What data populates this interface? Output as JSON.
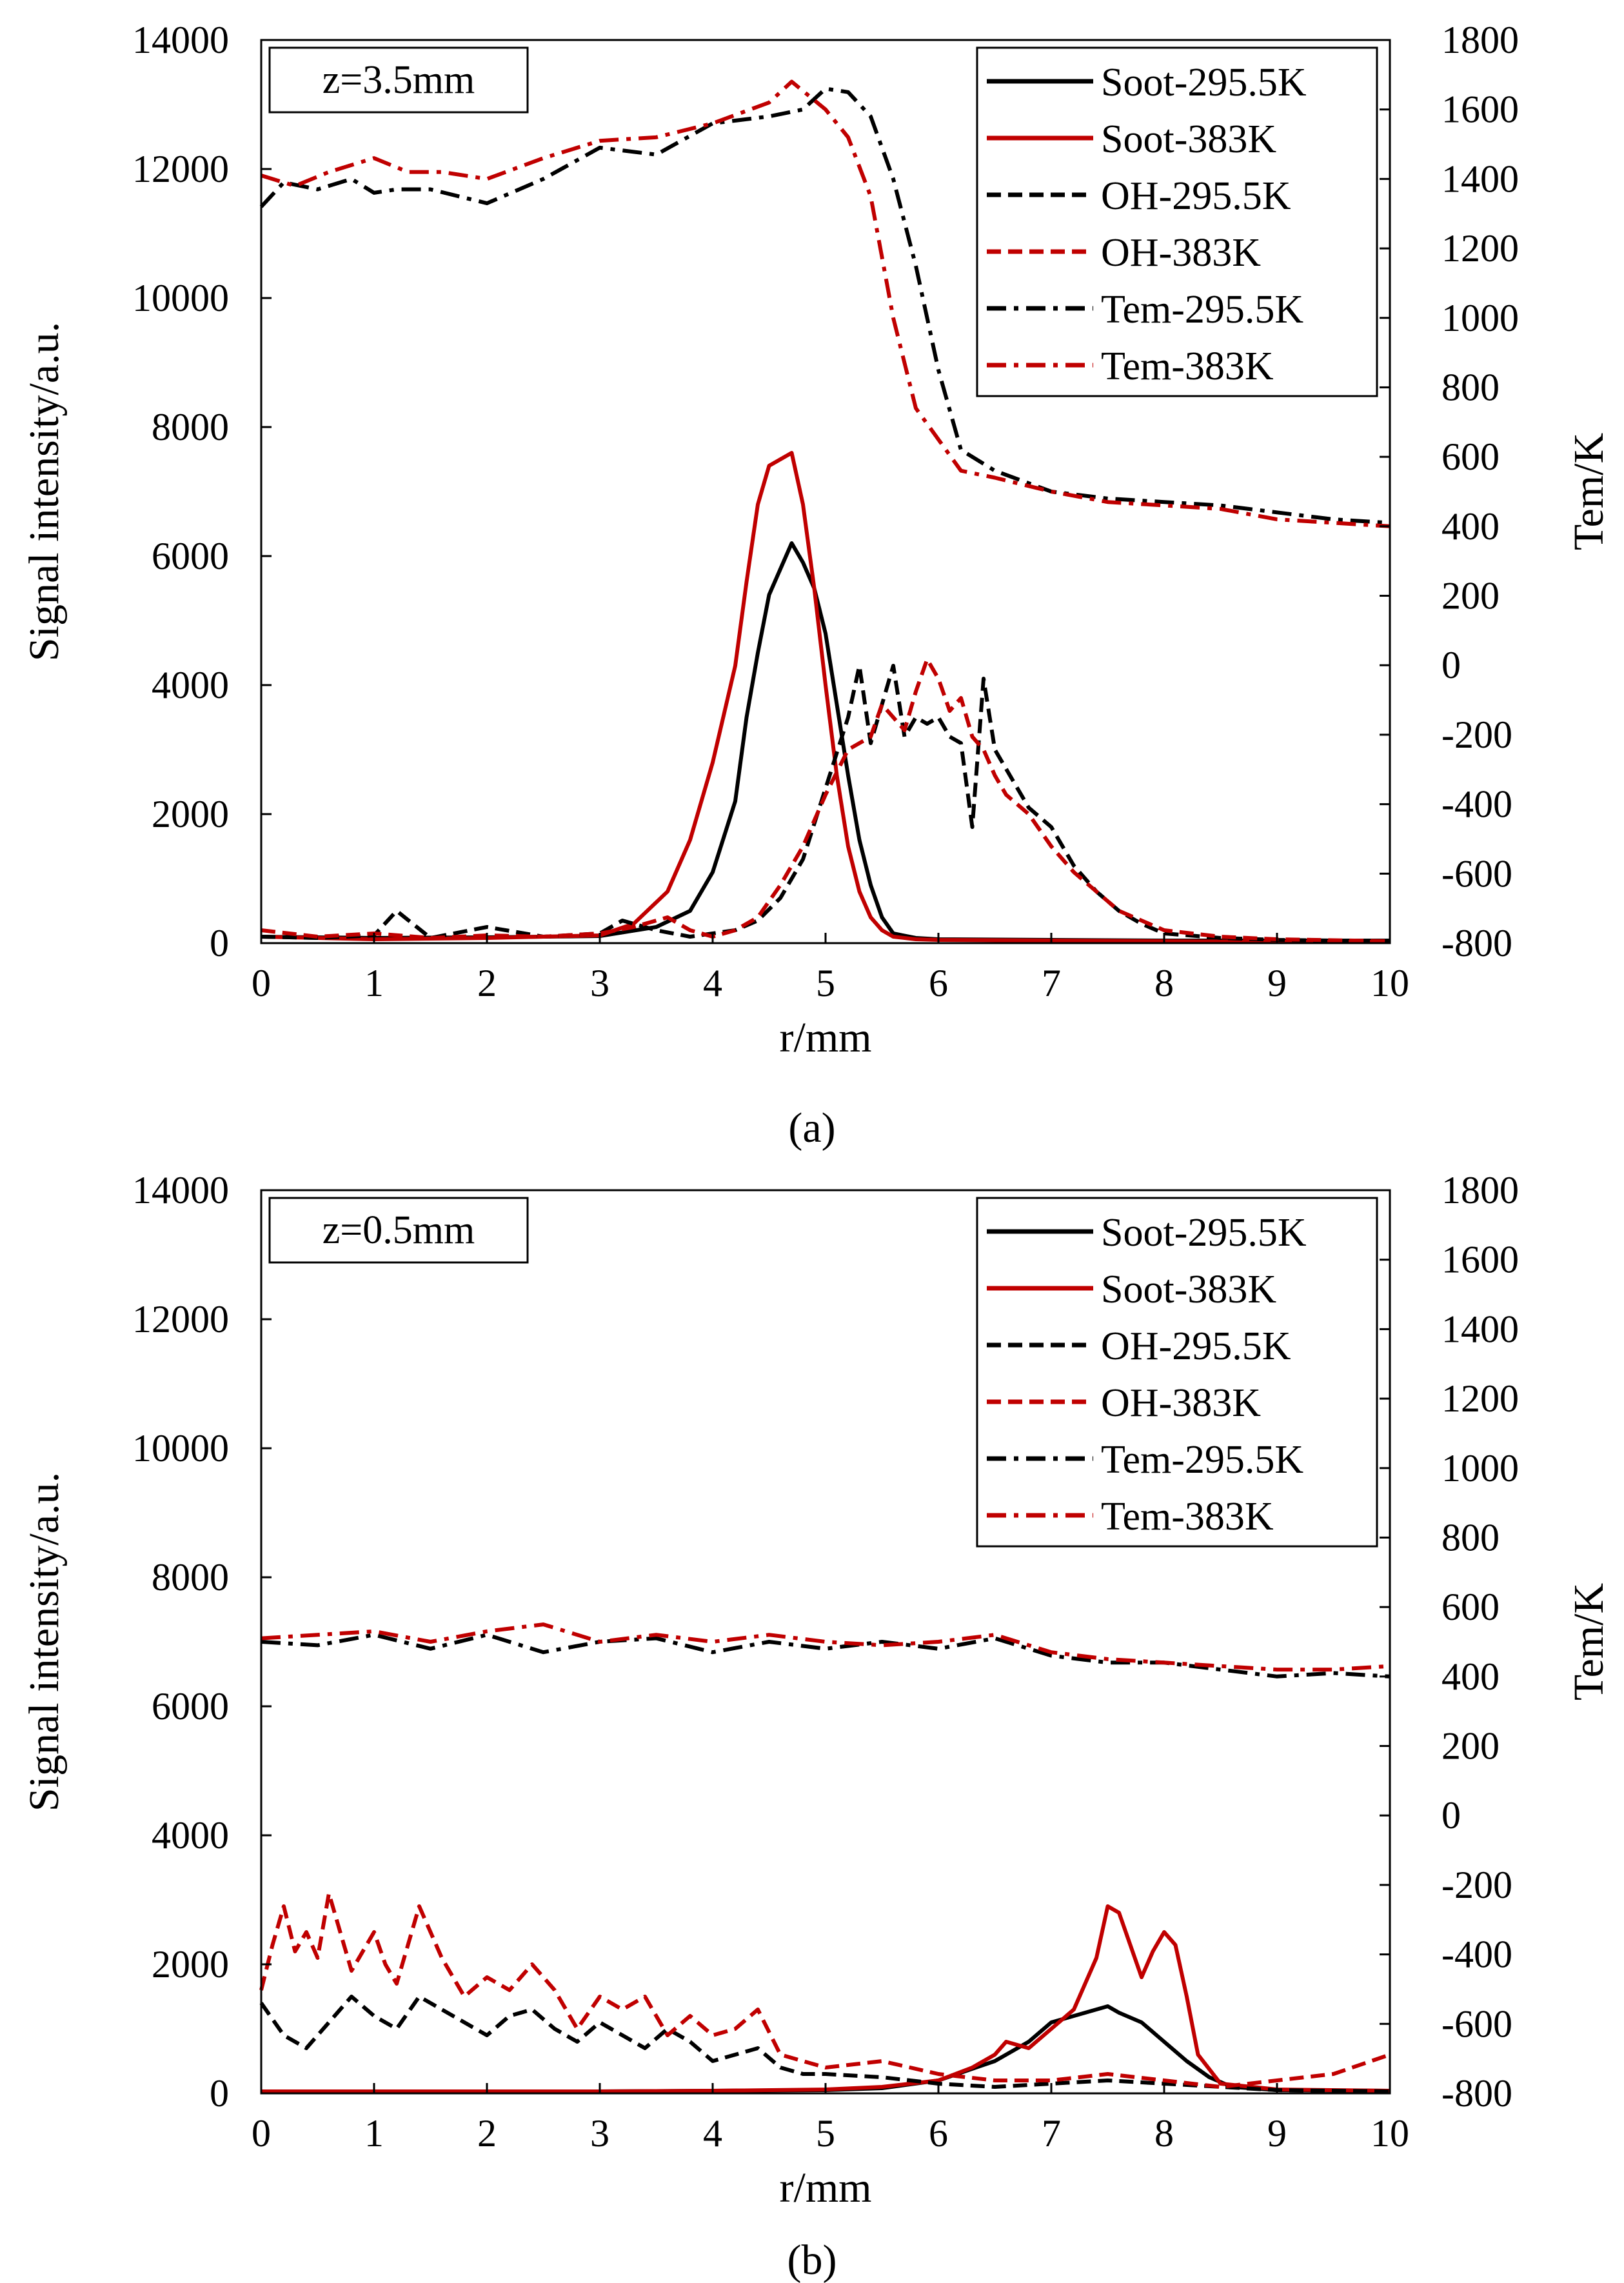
{
  "colors": {
    "black": "#000000",
    "red": "#c00000"
  },
  "chart_data": [
    {
      "type": "line",
      "panel_caption": "(a)",
      "annotation": "z=3.5mm",
      "xlabel": "r/mm",
      "ylabel": "Signal intensity/a.u.",
      "y2label": "Tem/K",
      "xlim": [
        0,
        10
      ],
      "ylim": [
        0,
        14000
      ],
      "y2lim": [
        -800,
        1800
      ],
      "xticks": [
        "0",
        "1",
        "2",
        "3",
        "4",
        "5",
        "6",
        "7",
        "8",
        "9",
        "10"
      ],
      "yticks": [
        "0",
        "2000",
        "4000",
        "6000",
        "8000",
        "10000",
        "12000",
        "14000"
      ],
      "y2ticks": [
        "-800",
        "-600",
        "-400",
        "-200",
        "0",
        "200",
        "400",
        "600",
        "800",
        "1000",
        "1200",
        "1400",
        "1600",
        "1800"
      ],
      "legend": [
        "Soot-295.5K",
        "Soot-383K",
        "OH-295.5K",
        "OH-383K",
        "Tem-295.5K",
        "Tem-383K"
      ],
      "series": [
        {
          "name": "Soot-295.5K",
          "axis": "left",
          "style": "solid",
          "color": "#000000",
          "x": [
            0,
            1,
            2,
            3,
            3.5,
            3.8,
            4.0,
            4.2,
            4.3,
            4.4,
            4.5,
            4.6,
            4.7,
            4.8,
            4.9,
            5.0,
            5.1,
            5.2,
            5.3,
            5.4,
            5.5,
            5.6,
            5.8,
            6,
            7,
            8,
            9,
            10
          ],
          "y": [
            100,
            80,
            90,
            110,
            250,
            500,
            1100,
            2200,
            3500,
            4500,
            5400,
            5800,
            6200,
            5900,
            5500,
            4800,
            3700,
            2600,
            1600,
            900,
            400,
            150,
            80,
            60,
            50,
            40,
            40,
            40
          ]
        },
        {
          "name": "Soot-383K",
          "axis": "left",
          "style": "solid",
          "color": "#c00000",
          "x": [
            0,
            1,
            2,
            3,
            3.3,
            3.6,
            3.8,
            4.0,
            4.2,
            4.3,
            4.4,
            4.5,
            4.6,
            4.7,
            4.8,
            4.9,
            5.0,
            5.1,
            5.2,
            5.3,
            5.4,
            5.5,
            5.6,
            5.8,
            6,
            7,
            8,
            9,
            10
          ],
          "y": [
            100,
            60,
            80,
            120,
            300,
            800,
            1600,
            2800,
            4300,
            5600,
            6800,
            7400,
            7500,
            7600,
            6800,
            5500,
            4000,
            2600,
            1500,
            800,
            400,
            200,
            100,
            60,
            50,
            40,
            30,
            20,
            20
          ]
        },
        {
          "name": "OH-295.5K",
          "axis": "left",
          "style": "dash",
          "color": "#000000",
          "x": [
            0,
            0.5,
            1,
            1.2,
            1.5,
            2,
            2.5,
            3,
            3.2,
            3.5,
            3.8,
            4.0,
            4.2,
            4.4,
            4.6,
            4.8,
            5.0,
            5.2,
            5.3,
            5.4,
            5.5,
            5.6,
            5.7,
            5.8,
            5.9,
            6.0,
            6.1,
            6.2,
            6.3,
            6.4,
            6.5,
            6.6,
            6.8,
            7.0,
            7.2,
            7.4,
            7.6,
            7.8,
            8.0,
            8.5,
            9,
            10
          ],
          "y": [
            100,
            80,
            120,
            500,
            80,
            250,
            100,
            150,
            350,
            200,
            100,
            150,
            200,
            350,
            700,
            1300,
            2400,
            3500,
            4300,
            3100,
            3700,
            4300,
            3200,
            3500,
            3400,
            3500,
            3200,
            3100,
            1800,
            4100,
            3000,
            2700,
            2100,
            1800,
            1200,
            800,
            500,
            300,
            150,
            80,
            50,
            30
          ]
        },
        {
          "name": "OH-383K",
          "axis": "left",
          "style": "dash",
          "color": "#c00000",
          "x": [
            0,
            0.5,
            1,
            1.5,
            2,
            2.5,
            3,
            3.3,
            3.6,
            3.8,
            4.0,
            4.2,
            4.4,
            4.6,
            4.8,
            5.0,
            5.2,
            5.4,
            5.5,
            5.6,
            5.7,
            5.8,
            5.9,
            6.0,
            6.1,
            6.2,
            6.3,
            6.4,
            6.5,
            6.6,
            6.8,
            7.0,
            7.2,
            7.4,
            7.6,
            7.8,
            8.0,
            8.5,
            9,
            10
          ],
          "y": [
            200,
            100,
            150,
            80,
            120,
            100,
            150,
            250,
            400,
            200,
            100,
            200,
            400,
            900,
            1500,
            2300,
            3000,
            3200,
            3700,
            3500,
            3300,
            3900,
            4400,
            4100,
            3600,
            3800,
            3200,
            3000,
            2600,
            2300,
            2000,
            1500,
            1100,
            800,
            500,
            350,
            200,
            100,
            60,
            30
          ]
        },
        {
          "name": "Tem-295.5K",
          "axis": "right",
          "style": "dashdot",
          "color": "#000000",
          "x": [
            0,
            0.2,
            0.5,
            0.8,
            1.0,
            1.2,
            1.5,
            2.0,
            2.5,
            3.0,
            3.5,
            4.0,
            4.5,
            4.8,
            5.0,
            5.2,
            5.4,
            5.6,
            5.8,
            6.0,
            6.2,
            6.5,
            7.0,
            7.5,
            8.0,
            8.5,
            9.0,
            9.5,
            10
          ],
          "y": [
            1320,
            1390,
            1370,
            1400,
            1360,
            1370,
            1370,
            1330,
            1400,
            1490,
            1470,
            1560,
            1580,
            1600,
            1660,
            1650,
            1580,
            1400,
            1150,
            850,
            620,
            560,
            500,
            480,
            470,
            460,
            440,
            420,
            410
          ]
        },
        {
          "name": "Tem-383K",
          "axis": "right",
          "style": "dashdot",
          "color": "#c00000",
          "x": [
            0,
            0.3,
            0.6,
            1.0,
            1.3,
            1.6,
            2.0,
            2.5,
            3.0,
            3.5,
            4.0,
            4.5,
            4.7,
            5.0,
            5.2,
            5.4,
            5.6,
            5.8,
            6.0,
            6.2,
            6.5,
            7.0,
            7.5,
            8.0,
            8.5,
            9.0,
            9.5,
            10
          ],
          "y": [
            1410,
            1380,
            1420,
            1460,
            1420,
            1420,
            1400,
            1460,
            1510,
            1520,
            1560,
            1620,
            1680,
            1600,
            1520,
            1350,
            1000,
            740,
            650,
            560,
            540,
            500,
            470,
            460,
            450,
            420,
            410,
            400
          ]
        }
      ]
    },
    {
      "type": "line",
      "panel_caption": "(b)",
      "annotation": "z=0.5mm",
      "xlabel": "r/mm",
      "ylabel": "Signal intensity/a.u.",
      "y2label": "Tem/K",
      "xlim": [
        0,
        10
      ],
      "ylim": [
        0,
        14000
      ],
      "y2lim": [
        -800,
        1800
      ],
      "xticks": [
        "0",
        "1",
        "2",
        "3",
        "4",
        "5",
        "6",
        "7",
        "8",
        "9",
        "10"
      ],
      "yticks": [
        "0",
        "2000",
        "4000",
        "6000",
        "8000",
        "10000",
        "12000",
        "14000"
      ],
      "y2ticks": [
        "-800",
        "-600",
        "-400",
        "-200",
        "0",
        "200",
        "400",
        "600",
        "800",
        "1000",
        "1200",
        "1400",
        "1600",
        "1800"
      ],
      "legend": [
        "Soot-295.5K",
        "Soot-383K",
        "OH-295.5K",
        "OH-383K",
        "Tem-295.5K",
        "Tem-383K"
      ],
      "series": [
        {
          "name": "Soot-295.5K",
          "axis": "left",
          "style": "solid",
          "color": "#000000",
          "x": [
            0,
            1,
            2,
            3,
            4,
            5,
            5.5,
            6.0,
            6.5,
            6.8,
            7.0,
            7.2,
            7.4,
            7.5,
            7.6,
            7.8,
            8.0,
            8.2,
            8.4,
            8.6,
            9,
            10
          ],
          "y": [
            30,
            30,
            30,
            30,
            40,
            50,
            80,
            200,
            500,
            800,
            1100,
            1200,
            1300,
            1350,
            1250,
            1100,
            800,
            500,
            250,
            100,
            50,
            40
          ]
        },
        {
          "name": "Soot-383K",
          "axis": "left",
          "style": "solid",
          "color": "#c00000",
          "x": [
            0,
            1,
            2,
            3,
            4,
            5,
            5.5,
            6.0,
            6.3,
            6.5,
            6.6,
            6.8,
            7.0,
            7.2,
            7.4,
            7.5,
            7.6,
            7.8,
            7.9,
            8.0,
            8.1,
            8.2,
            8.3,
            8.5,
            9,
            10
          ],
          "y": [
            30,
            30,
            30,
            30,
            40,
            60,
            100,
            200,
            400,
            600,
            800,
            700,
            1000,
            1300,
            2100,
            2900,
            2800,
            1800,
            2200,
            2500,
            2300,
            1500,
            600,
            150,
            60,
            40
          ]
        },
        {
          "name": "OH-295.5K",
          "axis": "left",
          "style": "dash",
          "color": "#000000",
          "x": [
            0,
            0.2,
            0.4,
            0.6,
            0.8,
            1.0,
            1.2,
            1.4,
            1.6,
            1.8,
            2.0,
            2.2,
            2.4,
            2.6,
            2.8,
            3.0,
            3.2,
            3.4,
            3.6,
            3.8,
            4.0,
            4.2,
            4.4,
            4.6,
            4.8,
            5.0,
            5.5,
            6.0,
            6.5,
            7.0,
            7.5,
            8.0,
            8.5,
            9.0,
            10
          ],
          "y": [
            1400,
            900,
            700,
            1100,
            1500,
            1200,
            1000,
            1500,
            1300,
            1100,
            900,
            1200,
            1300,
            1000,
            800,
            1100,
            900,
            700,
            1000,
            800,
            500,
            600,
            700,
            400,
            300,
            300,
            250,
            150,
            100,
            150,
            200,
            150,
            100,
            50,
            30
          ]
        },
        {
          "name": "OH-383K",
          "axis": "left",
          "style": "dash",
          "color": "#c00000",
          "x": [
            0,
            0.1,
            0.2,
            0.3,
            0.4,
            0.5,
            0.6,
            0.7,
            0.8,
            1.0,
            1.1,
            1.2,
            1.4,
            1.6,
            1.8,
            2.0,
            2.2,
            2.4,
            2.6,
            2.8,
            3.0,
            3.2,
            3.4,
            3.6,
            3.8,
            4.0,
            4.2,
            4.4,
            4.6,
            4.8,
            5.0,
            5.5,
            6.0,
            6.5,
            7.0,
            7.5,
            8.0,
            8.5,
            9.0,
            9.5,
            10
          ],
          "y": [
            1600,
            2300,
            2900,
            2200,
            2500,
            2100,
            3100,
            2500,
            1900,
            2500,
            2000,
            1700,
            2900,
            2100,
            1500,
            1800,
            1600,
            2000,
            1600,
            1000,
            1500,
            1300,
            1500,
            900,
            1200,
            900,
            1000,
            1300,
            600,
            500,
            400,
            500,
            300,
            200,
            200,
            300,
            200,
            100,
            200,
            300,
            600
          ]
        },
        {
          "name": "Tem-295.5K",
          "axis": "right",
          "style": "dashdot",
          "color": "#000000",
          "x": [
            0,
            0.5,
            1,
            1.5,
            2,
            2.5,
            3,
            3.5,
            4,
            4.5,
            5,
            5.5,
            6,
            6.5,
            7,
            7.5,
            8,
            8.5,
            9,
            9.5,
            10
          ],
          "y": [
            500,
            490,
            520,
            480,
            520,
            470,
            500,
            510,
            470,
            500,
            480,
            500,
            480,
            510,
            460,
            440,
            440,
            420,
            400,
            410,
            400
          ]
        },
        {
          "name": "Tem-383K",
          "axis": "right",
          "style": "dashdot",
          "color": "#c00000",
          "x": [
            0,
            0.5,
            1,
            1.5,
            2,
            2.5,
            3,
            3.5,
            4,
            4.5,
            5,
            5.5,
            6,
            6.5,
            7,
            7.5,
            8,
            8.5,
            9,
            9.5,
            10
          ],
          "y": [
            510,
            520,
            530,
            500,
            530,
            550,
            500,
            520,
            500,
            520,
            500,
            490,
            500,
            520,
            470,
            450,
            440,
            430,
            420,
            420,
            430
          ]
        }
      ]
    }
  ]
}
